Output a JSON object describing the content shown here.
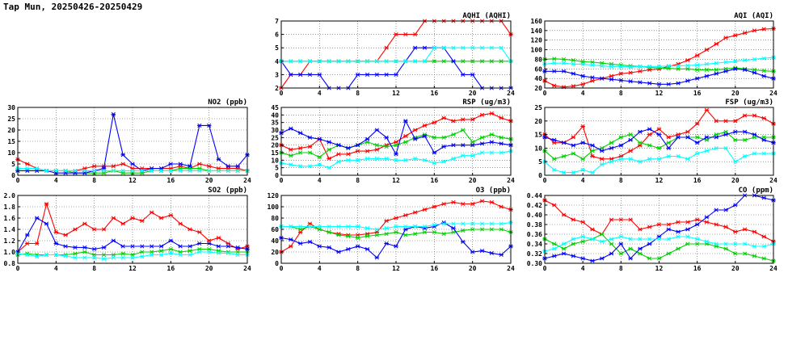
{
  "page_title": "Tap Mun, 20250426-20250429",
  "chart_data": [
    {
      "type": "line",
      "title": "AQHI (AQHI)",
      "xlim": [
        0,
        24
      ],
      "xticks": [
        0,
        4,
        8,
        12,
        16,
        20,
        24
      ],
      "ylim": [
        2,
        7
      ],
      "yticks": [
        2,
        3,
        4,
        5,
        6,
        7
      ],
      "grid": true,
      "series": [
        {
          "color": "#ff0000",
          "values": [
            2,
            3,
            3,
            4,
            4,
            4,
            4,
            4,
            4,
            4,
            4,
            5,
            6,
            6,
            6,
            7,
            7,
            7,
            7,
            7,
            7,
            7,
            7,
            7,
            6
          ]
        },
        {
          "color": "#00d000",
          "values": [
            4,
            4,
            4,
            4,
            4,
            4,
            4,
            4,
            4,
            4,
            4,
            4,
            4,
            4,
            4,
            4,
            4,
            4,
            4,
            4,
            4,
            4,
            4,
            4,
            4
          ]
        },
        {
          "color": "#0000ff",
          "values": [
            4,
            3,
            3,
            3,
            3,
            2,
            2,
            2,
            3,
            3,
            3,
            3,
            3,
            4,
            5,
            5,
            5,
            5,
            4,
            3,
            3,
            2,
            2,
            2,
            2
          ]
        },
        {
          "color": "#00ffff",
          "values": [
            4,
            4,
            4,
            4,
            4,
            4,
            4,
            4,
            4,
            4,
            4,
            4,
            4,
            4,
            4,
            4,
            5,
            5,
            5,
            5,
            5,
            5,
            5,
            5,
            4
          ]
        }
      ]
    },
    {
      "type": "line",
      "title": "AQI (AQI)",
      "xlim": [
        0,
        24
      ],
      "xticks": [
        0,
        4,
        8,
        12,
        16,
        20,
        24
      ],
      "ylim": [
        20,
        160
      ],
      "yticks": [
        20,
        40,
        60,
        80,
        100,
        120,
        140,
        160
      ],
      "grid": true,
      "series": [
        {
          "color": "#ff0000",
          "values": [
            35,
            25,
            22,
            24,
            28,
            35,
            40,
            45,
            50,
            52,
            55,
            58,
            60,
            65,
            70,
            78,
            88,
            100,
            112,
            125,
            130,
            135,
            140,
            143,
            144
          ]
        },
        {
          "color": "#00d000",
          "values": [
            80,
            81,
            80,
            78,
            75,
            74,
            72,
            70,
            68,
            66,
            65,
            63,
            62,
            61,
            60,
            60,
            58,
            58,
            58,
            60,
            62,
            60,
            58,
            56,
            55
          ]
        },
        {
          "color": "#0000ff",
          "values": [
            55,
            55,
            55,
            50,
            45,
            42,
            40,
            38,
            36,
            34,
            32,
            30,
            28,
            28,
            30,
            35,
            40,
            45,
            50,
            55,
            60,
            58,
            52,
            45,
            40
          ]
        },
        {
          "color": "#00ffff",
          "values": [
            70,
            72,
            72,
            70,
            70,
            68,
            66,
            65,
            65,
            64,
            65,
            65,
            65,
            66,
            66,
            67,
            68,
            70,
            72,
            74,
            76,
            78,
            80,
            82,
            84
          ]
        }
      ]
    },
    {
      "type": "line",
      "title": "NO2 (ppb)",
      "xlim": [
        0,
        24
      ],
      "xticks": [
        0,
        4,
        8,
        12,
        16,
        20,
        24
      ],
      "ylim": [
        0,
        30
      ],
      "yticks": [
        0,
        5,
        10,
        15,
        20,
        25,
        30
      ],
      "grid": true,
      "series": [
        {
          "color": "#ff0000",
          "values": [
            7,
            5,
            3,
            2,
            2,
            2,
            2,
            3,
            4,
            4,
            4,
            5,
            3,
            3,
            3,
            3,
            3,
            4,
            3,
            5,
            4,
            3,
            3,
            3,
            2
          ]
        },
        {
          "color": "#00d000",
          "values": [
            2,
            2,
            2,
            2,
            2,
            2,
            1,
            1,
            1,
            1,
            2,
            1,
            1,
            1,
            2,
            2,
            2,
            3,
            3,
            3,
            2,
            2,
            2,
            2,
            2
          ]
        },
        {
          "color": "#0000ff",
          "values": [
            2,
            2,
            2,
            2,
            1,
            1,
            1,
            1,
            2,
            3,
            27,
            9,
            5,
            2,
            3,
            3,
            5,
            5,
            4,
            22,
            22,
            7,
            4,
            4,
            9
          ]
        },
        {
          "color": "#00ffff",
          "values": [
            3,
            3,
            3,
            2,
            2,
            2,
            2,
            2,
            2,
            2,
            2,
            2,
            2,
            2,
            2,
            2,
            2,
            2,
            2,
            2,
            2,
            2,
            2,
            2,
            2
          ]
        }
      ]
    },
    {
      "type": "line",
      "title": "RSP (ug/m3)",
      "xlim": [
        0,
        24
      ],
      "xticks": [
        0,
        4,
        8,
        12,
        16,
        20,
        24
      ],
      "ylim": [
        0,
        45
      ],
      "yticks": [
        0,
        5,
        10,
        15,
        20,
        25,
        30,
        35,
        40,
        45
      ],
      "grid": true,
      "series": [
        {
          "color": "#ff0000",
          "values": [
            20,
            17,
            18,
            19,
            24,
            11,
            14,
            14,
            16,
            16,
            17,
            20,
            22,
            26,
            30,
            33,
            35,
            38,
            36,
            37,
            37,
            40,
            41,
            38,
            36
          ]
        },
        {
          "color": "#00d000",
          "values": [
            15,
            13,
            15,
            15,
            12,
            17,
            20,
            18,
            20,
            22,
            20,
            19,
            20,
            22,
            25,
            27,
            25,
            25,
            27,
            30,
            22,
            25,
            27,
            25,
            24
          ]
        },
        {
          "color": "#0000ff",
          "values": [
            28,
            31,
            28,
            25,
            24,
            22,
            20,
            18,
            20,
            24,
            30,
            25,
            14,
            36,
            24,
            26,
            15,
            19,
            20,
            20,
            20,
            21,
            22,
            21,
            20
          ]
        },
        {
          "color": "#00ffff",
          "values": [
            8,
            7,
            6,
            6,
            7,
            5,
            9,
            10,
            10,
            11,
            11,
            11,
            10,
            10,
            11,
            10,
            8,
            9,
            11,
            13,
            13,
            15,
            15,
            15,
            16
          ]
        }
      ]
    },
    {
      "type": "line",
      "title": "FSP (ug/m3)",
      "xlim": [
        0,
        24
      ],
      "xticks": [
        0,
        4,
        8,
        12,
        16,
        20,
        24
      ],
      "ylim": [
        0,
        25
      ],
      "yticks": [
        0,
        5,
        10,
        15,
        20,
        25
      ],
      "grid": true,
      "series": [
        {
          "color": "#ff0000",
          "values": [
            15,
            12,
            12,
            14,
            18,
            7,
            6,
            6,
            7,
            9,
            11,
            15,
            17,
            14,
            15,
            16,
            19,
            24,
            20,
            20,
            20,
            22,
            22,
            21,
            19
          ]
        },
        {
          "color": "#00d000",
          "values": [
            9,
            6,
            7,
            8,
            6,
            9,
            10,
            12,
            14,
            15,
            12,
            11,
            10,
            12,
            14,
            14,
            14,
            13,
            15,
            16,
            13,
            13,
            14,
            14,
            14
          ]
        },
        {
          "color": "#0000ff",
          "values": [
            14,
            13,
            12,
            11,
            12,
            11,
            9,
            10,
            11,
            13,
            16,
            17,
            15,
            10,
            14,
            14,
            12,
            14,
            14,
            15,
            16,
            16,
            15,
            13,
            12
          ]
        },
        {
          "color": "#00ffff",
          "values": [
            5,
            2,
            1,
            1,
            2,
            1,
            4,
            5,
            6,
            6,
            5,
            6,
            6,
            7,
            7,
            6,
            8,
            9,
            10,
            10,
            5,
            7,
            8,
            8,
            8
          ]
        }
      ]
    },
    {
      "type": "line",
      "title": "SO2 (ppb)",
      "xlim": [
        0,
        24
      ],
      "xticks": [
        0,
        4,
        8,
        12,
        16,
        20,
        24
      ],
      "ylim": [
        0.8,
        2.0
      ],
      "yticks": [
        0.8,
        1.0,
        1.2,
        1.4,
        1.6,
        1.8,
        2.0
      ],
      "grid": true,
      "series": [
        {
          "color": "#ff0000",
          "values": [
            1.0,
            1.15,
            1.15,
            1.85,
            1.35,
            1.3,
            1.4,
            1.5,
            1.4,
            1.4,
            1.6,
            1.5,
            1.6,
            1.55,
            1.7,
            1.6,
            1.65,
            1.5,
            1.4,
            1.35,
            1.2,
            1.25,
            1.15,
            1.05,
            1.1
          ]
        },
        {
          "color": "#00d000",
          "values": [
            0.95,
            0.97,
            0.95,
            0.95,
            0.95,
            0.95,
            0.97,
            1.0,
            0.95,
            0.95,
            0.95,
            0.97,
            0.95,
            1.0,
            1.0,
            1.02,
            1.05,
            1.0,
            1.02,
            1.05,
            1.05,
            1.02,
            1.0,
            1.0,
            1.0
          ]
        },
        {
          "color": "#0000ff",
          "values": [
            1.0,
            1.3,
            1.6,
            1.5,
            1.15,
            1.1,
            1.08,
            1.08,
            1.05,
            1.08,
            1.2,
            1.1,
            1.1,
            1.1,
            1.1,
            1.1,
            1.2,
            1.1,
            1.1,
            1.15,
            1.15,
            1.1,
            1.1,
            1.08,
            1.05
          ]
        },
        {
          "color": "#00ffff",
          "values": [
            0.97,
            0.95,
            0.92,
            0.95,
            0.95,
            0.93,
            0.9,
            0.9,
            0.9,
            0.88,
            0.9,
            0.9,
            0.9,
            0.92,
            0.95,
            0.95,
            0.98,
            0.95,
            0.95,
            1.0,
            1.0,
            0.98,
            0.98,
            0.95,
            0.95
          ]
        }
      ]
    },
    {
      "type": "line",
      "title": "O3 (ppb)",
      "xlim": [
        0,
        24
      ],
      "xticks": [
        0,
        4,
        8,
        12,
        16,
        20,
        24
      ],
      "ylim": [
        0,
        120
      ],
      "yticks": [
        0,
        20,
        40,
        60,
        80,
        100,
        120
      ],
      "grid": true,
      "series": [
        {
          "color": "#ff0000",
          "values": [
            20,
            30,
            55,
            70,
            60,
            55,
            52,
            50,
            50,
            52,
            55,
            75,
            80,
            85,
            90,
            95,
            100,
            105,
            108,
            105,
            105,
            110,
            108,
            100,
            95
          ]
        },
        {
          "color": "#00d000",
          "values": [
            65,
            65,
            60,
            65,
            60,
            55,
            50,
            48,
            45,
            48,
            50,
            52,
            55,
            50,
            52,
            55,
            55,
            52,
            55,
            58,
            60,
            60,
            60,
            60,
            55
          ]
        },
        {
          "color": "#0000ff",
          "values": [
            45,
            42,
            35,
            38,
            30,
            28,
            20,
            25,
            30,
            25,
            10,
            35,
            30,
            60,
            65,
            62,
            65,
            72,
            62,
            38,
            20,
            22,
            18,
            15,
            30
          ]
        },
        {
          "color": "#00ffff",
          "values": [
            65,
            65,
            65,
            65,
            65,
            65,
            65,
            65,
            65,
            62,
            60,
            62,
            65,
            65,
            65,
            65,
            68,
            70,
            70,
            70,
            70,
            70,
            70,
            70,
            72
          ]
        }
      ]
    },
    {
      "type": "line",
      "title": "CO (ppm)",
      "xlim": [
        0,
        24
      ],
      "xticks": [
        0,
        4,
        8,
        12,
        16,
        20,
        24
      ],
      "ylim": [
        0.3,
        0.44
      ],
      "yticks": [
        0.3,
        0.32,
        0.34,
        0.36,
        0.38,
        0.4,
        0.42,
        0.44
      ],
      "grid": true,
      "series": [
        {
          "color": "#ff0000",
          "values": [
            0.43,
            0.42,
            0.4,
            0.39,
            0.385,
            0.37,
            0.36,
            0.39,
            0.39,
            0.39,
            0.37,
            0.375,
            0.38,
            0.38,
            0.385,
            0.385,
            0.39,
            0.385,
            0.38,
            0.375,
            0.365,
            0.37,
            0.365,
            0.355,
            0.345
          ]
        },
        {
          "color": "#00d000",
          "values": [
            0.35,
            0.34,
            0.33,
            0.34,
            0.345,
            0.35,
            0.36,
            0.34,
            0.32,
            0.33,
            0.32,
            0.31,
            0.31,
            0.32,
            0.33,
            0.34,
            0.34,
            0.34,
            0.335,
            0.33,
            0.32,
            0.32,
            0.315,
            0.31,
            0.305
          ]
        },
        {
          "color": "#0000ff",
          "values": [
            0.31,
            0.315,
            0.32,
            0.315,
            0.31,
            0.305,
            0.31,
            0.32,
            0.34,
            0.31,
            0.33,
            0.34,
            0.355,
            0.37,
            0.365,
            0.37,
            0.38,
            0.395,
            0.41,
            0.41,
            0.42,
            0.44,
            0.44,
            0.435,
            0.43
          ]
        },
        {
          "color": "#00ffff",
          "values": [
            0.325,
            0.33,
            0.34,
            0.35,
            0.355,
            0.35,
            0.345,
            0.35,
            0.355,
            0.35,
            0.35,
            0.35,
            0.35,
            0.35,
            0.355,
            0.355,
            0.35,
            0.345,
            0.34,
            0.34,
            0.34,
            0.34,
            0.335,
            0.335,
            0.34
          ]
        }
      ]
    }
  ]
}
